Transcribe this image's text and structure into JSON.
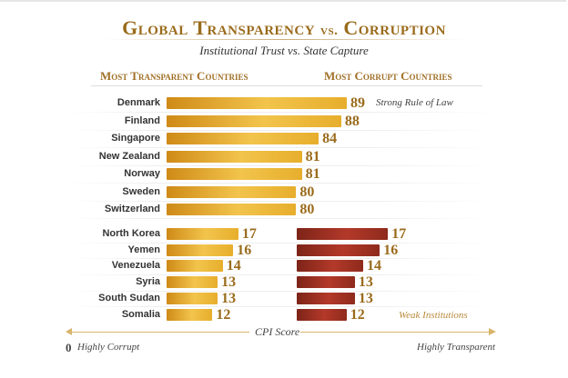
{
  "title": {
    "main": "Global Transparency",
    "vs": "vs.",
    "end": "Corruption"
  },
  "subtitle": "Institutional Trust vs. State Capture",
  "headers": {
    "left": "Most Transparent Countries",
    "right": "Most Corrupt Countries"
  },
  "chart_data": {
    "type": "bar",
    "colors": {
      "gold": "#e7ae2c",
      "red": "#a8352a",
      "label": "#9a6b1c"
    },
    "transparent": {
      "categories": [
        "Denmark",
        "Finland",
        "Singapore",
        "New Zealand",
        "Norway",
        "Sweden",
        "Switzerland"
      ],
      "values": [
        89,
        88,
        84,
        81,
        81,
        80,
        80
      ]
    },
    "corrupt": {
      "categories": [
        "North Korea",
        "Yemen",
        "Venezuela",
        "Syria",
        "South Sudan",
        "Somalia"
      ],
      "values": [
        17,
        16,
        14,
        13,
        13,
        12
      ],
      "mirror_values": [
        17,
        16,
        14,
        13,
        13,
        12
      ]
    },
    "annotations": {
      "top": "Strong Rule of Law",
      "bottom": "Weak Institutions"
    },
    "axis": {
      "label": "CPI Score",
      "min_label": "0",
      "left": "Highly Corrupt",
      "right": "Highly Transparent"
    }
  }
}
